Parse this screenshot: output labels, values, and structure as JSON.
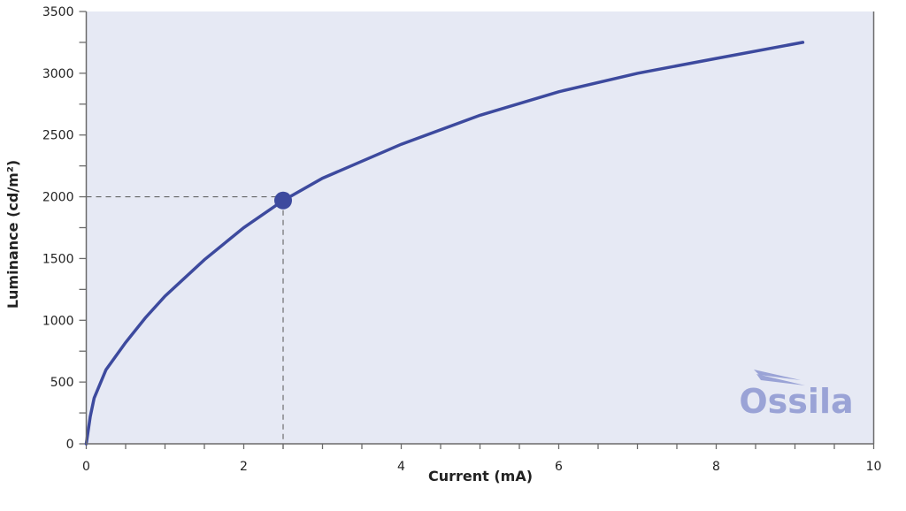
{
  "chart_data": {
    "type": "line",
    "title": "",
    "xlabel": "Current (mA)",
    "ylabel": "Luminance (cd/m²)",
    "xlim": [
      0,
      10
    ],
    "ylim": [
      0,
      3500
    ],
    "xticks": [
      0,
      2,
      4,
      6,
      8,
      10
    ],
    "yticks": [
      0,
      500,
      1000,
      1500,
      2000,
      2500,
      3000,
      3500
    ],
    "x_minor_step": 0.5,
    "y_minor_step": 250,
    "grid": false,
    "series": [
      {
        "name": "Luminance",
        "color": "#3d4a9e",
        "x": [
          0,
          0.05,
          0.1,
          0.25,
          0.5,
          0.75,
          1,
          1.5,
          2,
          2.5,
          3,
          4,
          5,
          6,
          7,
          8,
          9.1
        ],
        "y": [
          0,
          220,
          370,
          600,
          820,
          1020,
          1195,
          1490,
          1750,
          1970,
          2150,
          2425,
          2660,
          2850,
          3000,
          3120,
          3250
        ]
      }
    ],
    "highlight_point": {
      "x": 2.5,
      "y": 1970,
      "reference_y": 2000
    },
    "watermark": "Ossila",
    "colors": {
      "plot_bg": "#e6e9f4",
      "axis": "#6b6b6b",
      "logo": "#9aa3d6"
    }
  }
}
